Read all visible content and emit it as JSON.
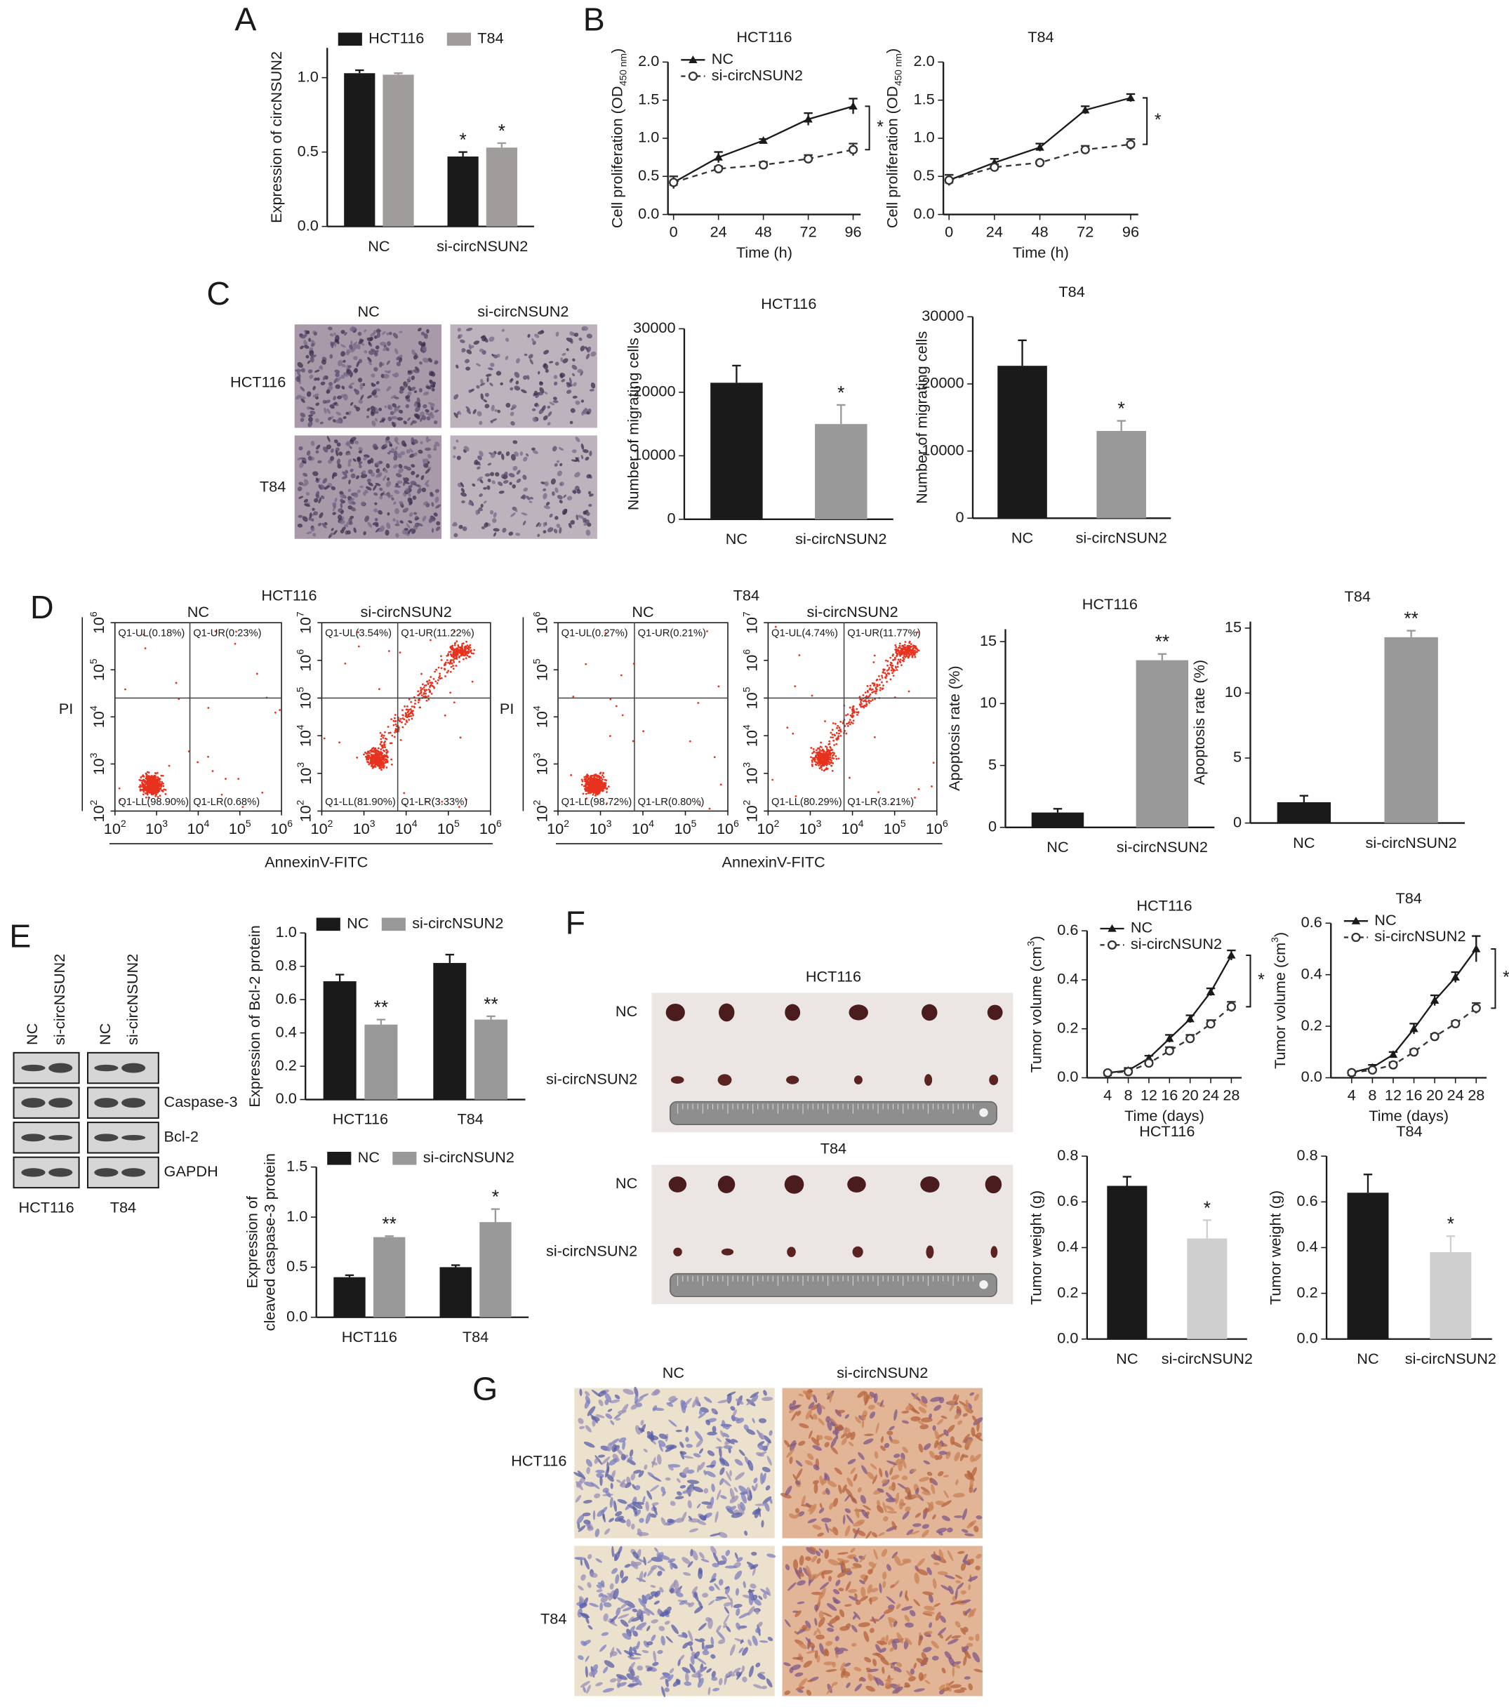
{
  "panels": [
    "A",
    "B",
    "C",
    "D",
    "E",
    "F",
    "G"
  ],
  "chart_data": [
    {
      "type": "bar",
      "categories": [
        "NC",
        "si-circNSUN2"
      ],
      "series": [
        {
          "name": "HCT116",
          "color": "#1a1a1a",
          "values": [
            1.03,
            0.47
          ],
          "errors": [
            0.02,
            0.03
          ],
          "significance": [
            null,
            "*"
          ]
        },
        {
          "name": "T84",
          "color": "#a09c9c",
          "values": [
            1.02,
            0.53
          ],
          "errors": [
            0.01,
            0.03
          ],
          "significance": [
            null,
            "*"
          ]
        }
      ],
      "ylabel": "Expression of circNSUN2",
      "ylim": [
        0,
        1.2
      ],
      "yticks": [
        {
          "value": 0,
          "label": "0.0"
        },
        0.5,
        {
          "value": 1,
          "label": "1.0"
        }
      ],
      "legend": "top"
    },
    {
      "type": "line",
      "title": "HCT116",
      "x": [
        0,
        24,
        48,
        72,
        96
      ],
      "xlim": [
        -3,
        100
      ],
      "xticks": [
        0,
        24,
        48,
        72,
        96
      ],
      "xlabel": "Time (h)",
      "ylabel": "Cell proliferation (OD",
      "ylabel_sub": "450 nm",
      "ylabel_end": ")",
      "ylim": [
        0,
        2
      ],
      "yticks": [
        {
          "value": 0,
          "label": "0.0"
        },
        0.5,
        {
          "value": 1,
          "label": "1.0"
        },
        1.5,
        {
          "value": 2,
          "label": "2.0"
        }
      ],
      "series": [
        {
          "name": "NC",
          "color": "#1a1a1a",
          "marker": "triangle",
          "dash": false,
          "values": [
            0.42,
            0.75,
            0.97,
            1.25,
            1.42
          ],
          "errors": [
            0.08,
            0.07,
            0.02,
            0.08,
            0.1
          ]
        },
        {
          "name": "si-circNSUN2",
          "color": "#333333",
          "marker": "circle",
          "dash": true,
          "values": [
            0.42,
            0.6,
            0.65,
            0.73,
            0.85
          ],
          "errors": [
            0.08,
            0.03,
            0.04,
            0.05,
            0.08
          ]
        }
      ],
      "legend": "upper left",
      "bracket_label": "*"
    },
    {
      "type": "line",
      "title": "T84",
      "x": [
        0,
        24,
        48,
        72,
        96
      ],
      "xlim": [
        -3,
        100
      ],
      "xticks": [
        0,
        24,
        48,
        72,
        96
      ],
      "xlabel": "Time (h)",
      "ylabel": "Cell proliferation (OD",
      "ylabel_sub": "450 nm",
      "ylabel_end": ")",
      "ylim": [
        0,
        2
      ],
      "yticks": [
        {
          "value": 0,
          "label": "0.0"
        },
        0.5,
        {
          "value": 1,
          "label": "1.0"
        },
        1.5,
        {
          "value": 2,
          "label": "2.0"
        }
      ],
      "series": [
        {
          "name": "NC",
          "color": "#1a1a1a",
          "marker": "triangle",
          "dash": false,
          "values": [
            0.45,
            0.68,
            0.88,
            1.37,
            1.53
          ],
          "errors": [
            0.07,
            0.05,
            0.05,
            0.05,
            0.05
          ]
        },
        {
          "name": "si-circNSUN2",
          "color": "#333333",
          "marker": "circle",
          "dash": true,
          "values": [
            0.45,
            0.62,
            0.68,
            0.85,
            0.92
          ],
          "errors": [
            0.07,
            0.04,
            0.02,
            0.05,
            0.07
          ]
        }
      ],
      "bracket_label": "*"
    },
    {
      "type": "bar",
      "title": "HCT116",
      "categories": [
        "NC",
        "si-circNSUN2"
      ],
      "values": [
        21500,
        15000
      ],
      "errors": [
        2700,
        3000
      ],
      "colors": [
        "#1a1a1a",
        "#999999"
      ],
      "significance": [
        null,
        "*"
      ],
      "ylabel": "Number of migrating cells",
      "ylim": [
        0,
        30000
      ],
      "yticks": [
        0,
        10000,
        20000,
        30000
      ]
    },
    {
      "type": "bar",
      "title": "T84",
      "categories": [
        "NC",
        "si-circNSUN2"
      ],
      "values": [
        22700,
        13000
      ],
      "errors": [
        3800,
        1500
      ],
      "colors": [
        "#1a1a1a",
        "#999999"
      ],
      "significance": [
        null,
        "*"
      ],
      "ylabel": "Number of migrating cells",
      "ylim": [
        0,
        30000
      ],
      "yticks": [
        0,
        10000,
        20000,
        30000
      ]
    },
    {
      "type": "bar",
      "title": "HCT116",
      "categories": [
        "NC",
        "si-circNSUN2"
      ],
      "values": [
        1.2,
        13.5
      ],
      "errors": [
        0.3,
        0.5
      ],
      "colors": [
        "#1a1a1a",
        "#999999"
      ],
      "significance": [
        null,
        "**"
      ],
      "ylabel": "Apoptosis rate (%)",
      "ylim": [
        0,
        16
      ],
      "yticks": [
        0,
        5,
        10,
        15
      ]
    },
    {
      "type": "bar",
      "title": "T84",
      "categories": [
        "NC",
        "si-circNSUN2"
      ],
      "values": [
        1.6,
        14.3
      ],
      "errors": [
        0.5,
        0.5
      ],
      "colors": [
        "#1a1a1a",
        "#999999"
      ],
      "significance": [
        null,
        "**"
      ],
      "ylabel": "Apoptosis rate (%)",
      "ylim": [
        0,
        15.5
      ],
      "yticks": [
        0,
        5,
        10,
        15
      ]
    },
    {
      "type": "bar",
      "categories": [
        "HCT116",
        "T84"
      ],
      "series": [
        {
          "name": "NC",
          "color": "#1a1a1a",
          "values": [
            0.71,
            0.82
          ],
          "errors": [
            0.04,
            0.05
          ]
        },
        {
          "name": "si-circNSUN2",
          "color": "#999999",
          "values": [
            0.45,
            0.48
          ],
          "errors": [
            0.03,
            0.02
          ],
          "significance": [
            "**",
            "**"
          ]
        }
      ],
      "ylabel": "Expression of Bcl-2 protein",
      "ylim": [
        0,
        1
      ],
      "yticks": [
        {
          "value": 0,
          "label": "0.0"
        },
        0.2,
        0.4,
        0.6,
        0.8,
        {
          "value": 1,
          "label": "1.0"
        }
      ],
      "legend": "top"
    },
    {
      "type": "bar",
      "categories": [
        "HCT116",
        "T84"
      ],
      "series": [
        {
          "name": "NC",
          "color": "#1a1a1a",
          "values": [
            0.4,
            0.5
          ],
          "errors": [
            0.02,
            0.02
          ]
        },
        {
          "name": "si-circNSUN2",
          "color": "#999999",
          "values": [
            0.8,
            0.95
          ],
          "errors": [
            0.01,
            0.13
          ],
          "significance": [
            "**",
            "*"
          ]
        }
      ],
      "ylabel": "Expression of",
      "ylabel2": "cleaved caspase-3 protein",
      "ylim": [
        0,
        1.5
      ],
      "yticks": [
        {
          "value": 0,
          "label": "0.0"
        },
        0.5,
        {
          "value": 1,
          "label": "1.0"
        },
        1.5
      ],
      "legend": "top"
    },
    {
      "type": "line",
      "title": "HCT116",
      "x": [
        4,
        8,
        12,
        16,
        20,
        24,
        28
      ],
      "xlim": [
        0,
        30
      ],
      "xticks": [
        4,
        8,
        12,
        16,
        20,
        24,
        28
      ],
      "xlabel": "Time (days)",
      "ylabel": "Tumor volume (cm",
      "ylabel_sup": "3",
      "ylabel_end": ")",
      "ylim": [
        0,
        0.6
      ],
      "yticks": [
        {
          "value": 0,
          "label": "0.0"
        },
        0.2,
        0.4,
        0.6
      ],
      "series": [
        {
          "name": "NC",
          "color": "#1a1a1a",
          "marker": "triangle",
          "dash": false,
          "values": [
            0.02,
            0.03,
            0.08,
            0.16,
            0.24,
            0.35,
            0.5
          ],
          "errors": [
            0.005,
            0.01,
            0.01,
            0.015,
            0.015,
            0.015,
            0.02
          ]
        },
        {
          "name": "si-circNSUN2",
          "color": "#333333",
          "marker": "circle",
          "dash": true,
          "values": [
            0.02,
            0.025,
            0.06,
            0.11,
            0.16,
            0.22,
            0.29
          ],
          "errors": [
            0.005,
            0.01,
            0.01,
            0.015,
            0.015,
            0.015,
            0.02
          ]
        }
      ],
      "legend": "upper left",
      "bracket_label": "*"
    },
    {
      "type": "line",
      "title": "T84",
      "x": [
        4,
        8,
        12,
        16,
        20,
        24,
        28
      ],
      "xlim": [
        0,
        30
      ],
      "xticks": [
        4,
        8,
        12,
        16,
        20,
        24,
        28
      ],
      "xlabel": "Time (days)",
      "ylabel": "Tumor volume (cm",
      "ylabel_sup": "3",
      "ylabel_end": ")",
      "ylim": [
        0,
        0.6
      ],
      "yticks": [
        {
          "value": 0,
          "label": "0.0"
        },
        0.2,
        0.4,
        0.6
      ],
      "series": [
        {
          "name": "NC",
          "color": "#1a1a1a",
          "marker": "triangle",
          "dash": false,
          "values": [
            0.02,
            0.04,
            0.09,
            0.19,
            0.3,
            0.39,
            0.5
          ],
          "errors": [
            0.005,
            0.01,
            0.01,
            0.02,
            0.02,
            0.02,
            0.05
          ]
        },
        {
          "name": "si-circNSUN2",
          "color": "#333333",
          "marker": "circle",
          "dash": true,
          "values": [
            0.02,
            0.03,
            0.05,
            0.1,
            0.16,
            0.21,
            0.27
          ],
          "errors": [
            0.005,
            0.005,
            0.01,
            0.01,
            0.01,
            0.01,
            0.02
          ]
        }
      ],
      "legend": "upper left",
      "bracket_label": "*"
    },
    {
      "type": "bar",
      "title": "HCT116",
      "categories": [
        "NC",
        "si-circNSUN2"
      ],
      "values": [
        0.67,
        0.44
      ],
      "errors": [
        0.04,
        0.08
      ],
      "colors": [
        "#1a1a1a",
        "#cfcfcf"
      ],
      "significance": [
        null,
        "*"
      ],
      "ylabel": "Tumor weight (g)",
      "ylim": [
        0,
        0.8
      ],
      "yticks": [
        {
          "value": 0,
          "label": "0.0"
        },
        0.2,
        0.4,
        0.6,
        0.8
      ]
    },
    {
      "type": "bar",
      "title": "T84",
      "categories": [
        "NC",
        "si-circNSUN2"
      ],
      "values": [
        0.64,
        0.38
      ],
      "errors": [
        0.08,
        0.07
      ],
      "colors": [
        "#1a1a1a",
        "#cfcfcf"
      ],
      "significance": [
        null,
        "*"
      ],
      "ylabel": "Tumor weight (g)",
      "ylim": [
        0,
        0.8
      ],
      "yticks": [
        {
          "value": 0,
          "label": "0.0"
        },
        0.2,
        0.4,
        0.6,
        0.8
      ]
    }
  ],
  "migration": {
    "cols": [
      "NC",
      "si-circNSUN2"
    ],
    "rows": [
      "HCT116",
      "T84"
    ]
  },
  "flow": {
    "base": "10",
    "xexp": [
      2,
      3,
      4,
      5,
      6
    ],
    "ylabel": "PI",
    "xlabel": "AnnexinV-FITC",
    "groups": [
      {
        "title": "HCT116",
        "plots": [
          {
            "title": "NC",
            "yexp": [
              2,
              3,
              4,
              5,
              6
            ],
            "quadrants": [
              "Q1-UL(0.18%)",
              "Q1-UR(0.23%)",
              "Q1-LL(98.90%)",
              "Q1-LR(0.68%)"
            ]
          },
          {
            "title": "si-circNSUN2",
            "yexp": [
              2,
              3,
              4,
              5,
              6,
              7
            ],
            "quadrants": [
              "Q1-UL(3.54%)",
              "Q1-UR(11.22%)",
              "Q1-LL(81.90%)",
              "Q1-LR(3.33%)"
            ]
          }
        ]
      },
      {
        "title": "T84",
        "plots": [
          {
            "title": "NC",
            "yexp": [
              2,
              3,
              4,
              5,
              6
            ],
            "quadrants": [
              "Q1-UL(0.27%)",
              "Q1-UR(0.21%)",
              "Q1-LL(98.72%)",
              "Q1-LR(0.80%)"
            ]
          },
          {
            "title": "si-circNSUN2",
            "yexp": [
              2,
              3,
              4,
              5,
              6,
              7
            ],
            "quadrants": [
              "Q1-UL(4.74%)",
              "Q1-UR(11.77%)",
              "Q1-LL(80.29%)",
              "Q1-LR(3.21%)"
            ]
          }
        ]
      }
    ]
  },
  "blot": {
    "lanes": [
      "NC",
      "si-circNSUN2"
    ],
    "proteins": [
      "Caspase-3",
      "Bcl-2",
      "GAPDH"
    ],
    "lines": [
      "HCT116",
      "T84"
    ]
  },
  "tumors": [
    {
      "title": "HCT116",
      "rows": [
        "NC",
        "si-circNSUN2"
      ]
    },
    {
      "title": "T84",
      "rows": [
        "NC",
        "si-circNSUN2"
      ]
    }
  ],
  "ihc": {
    "cols": [
      "NC",
      "si-circNSUN2"
    ],
    "rows": [
      "HCT116",
      "T84"
    ]
  }
}
